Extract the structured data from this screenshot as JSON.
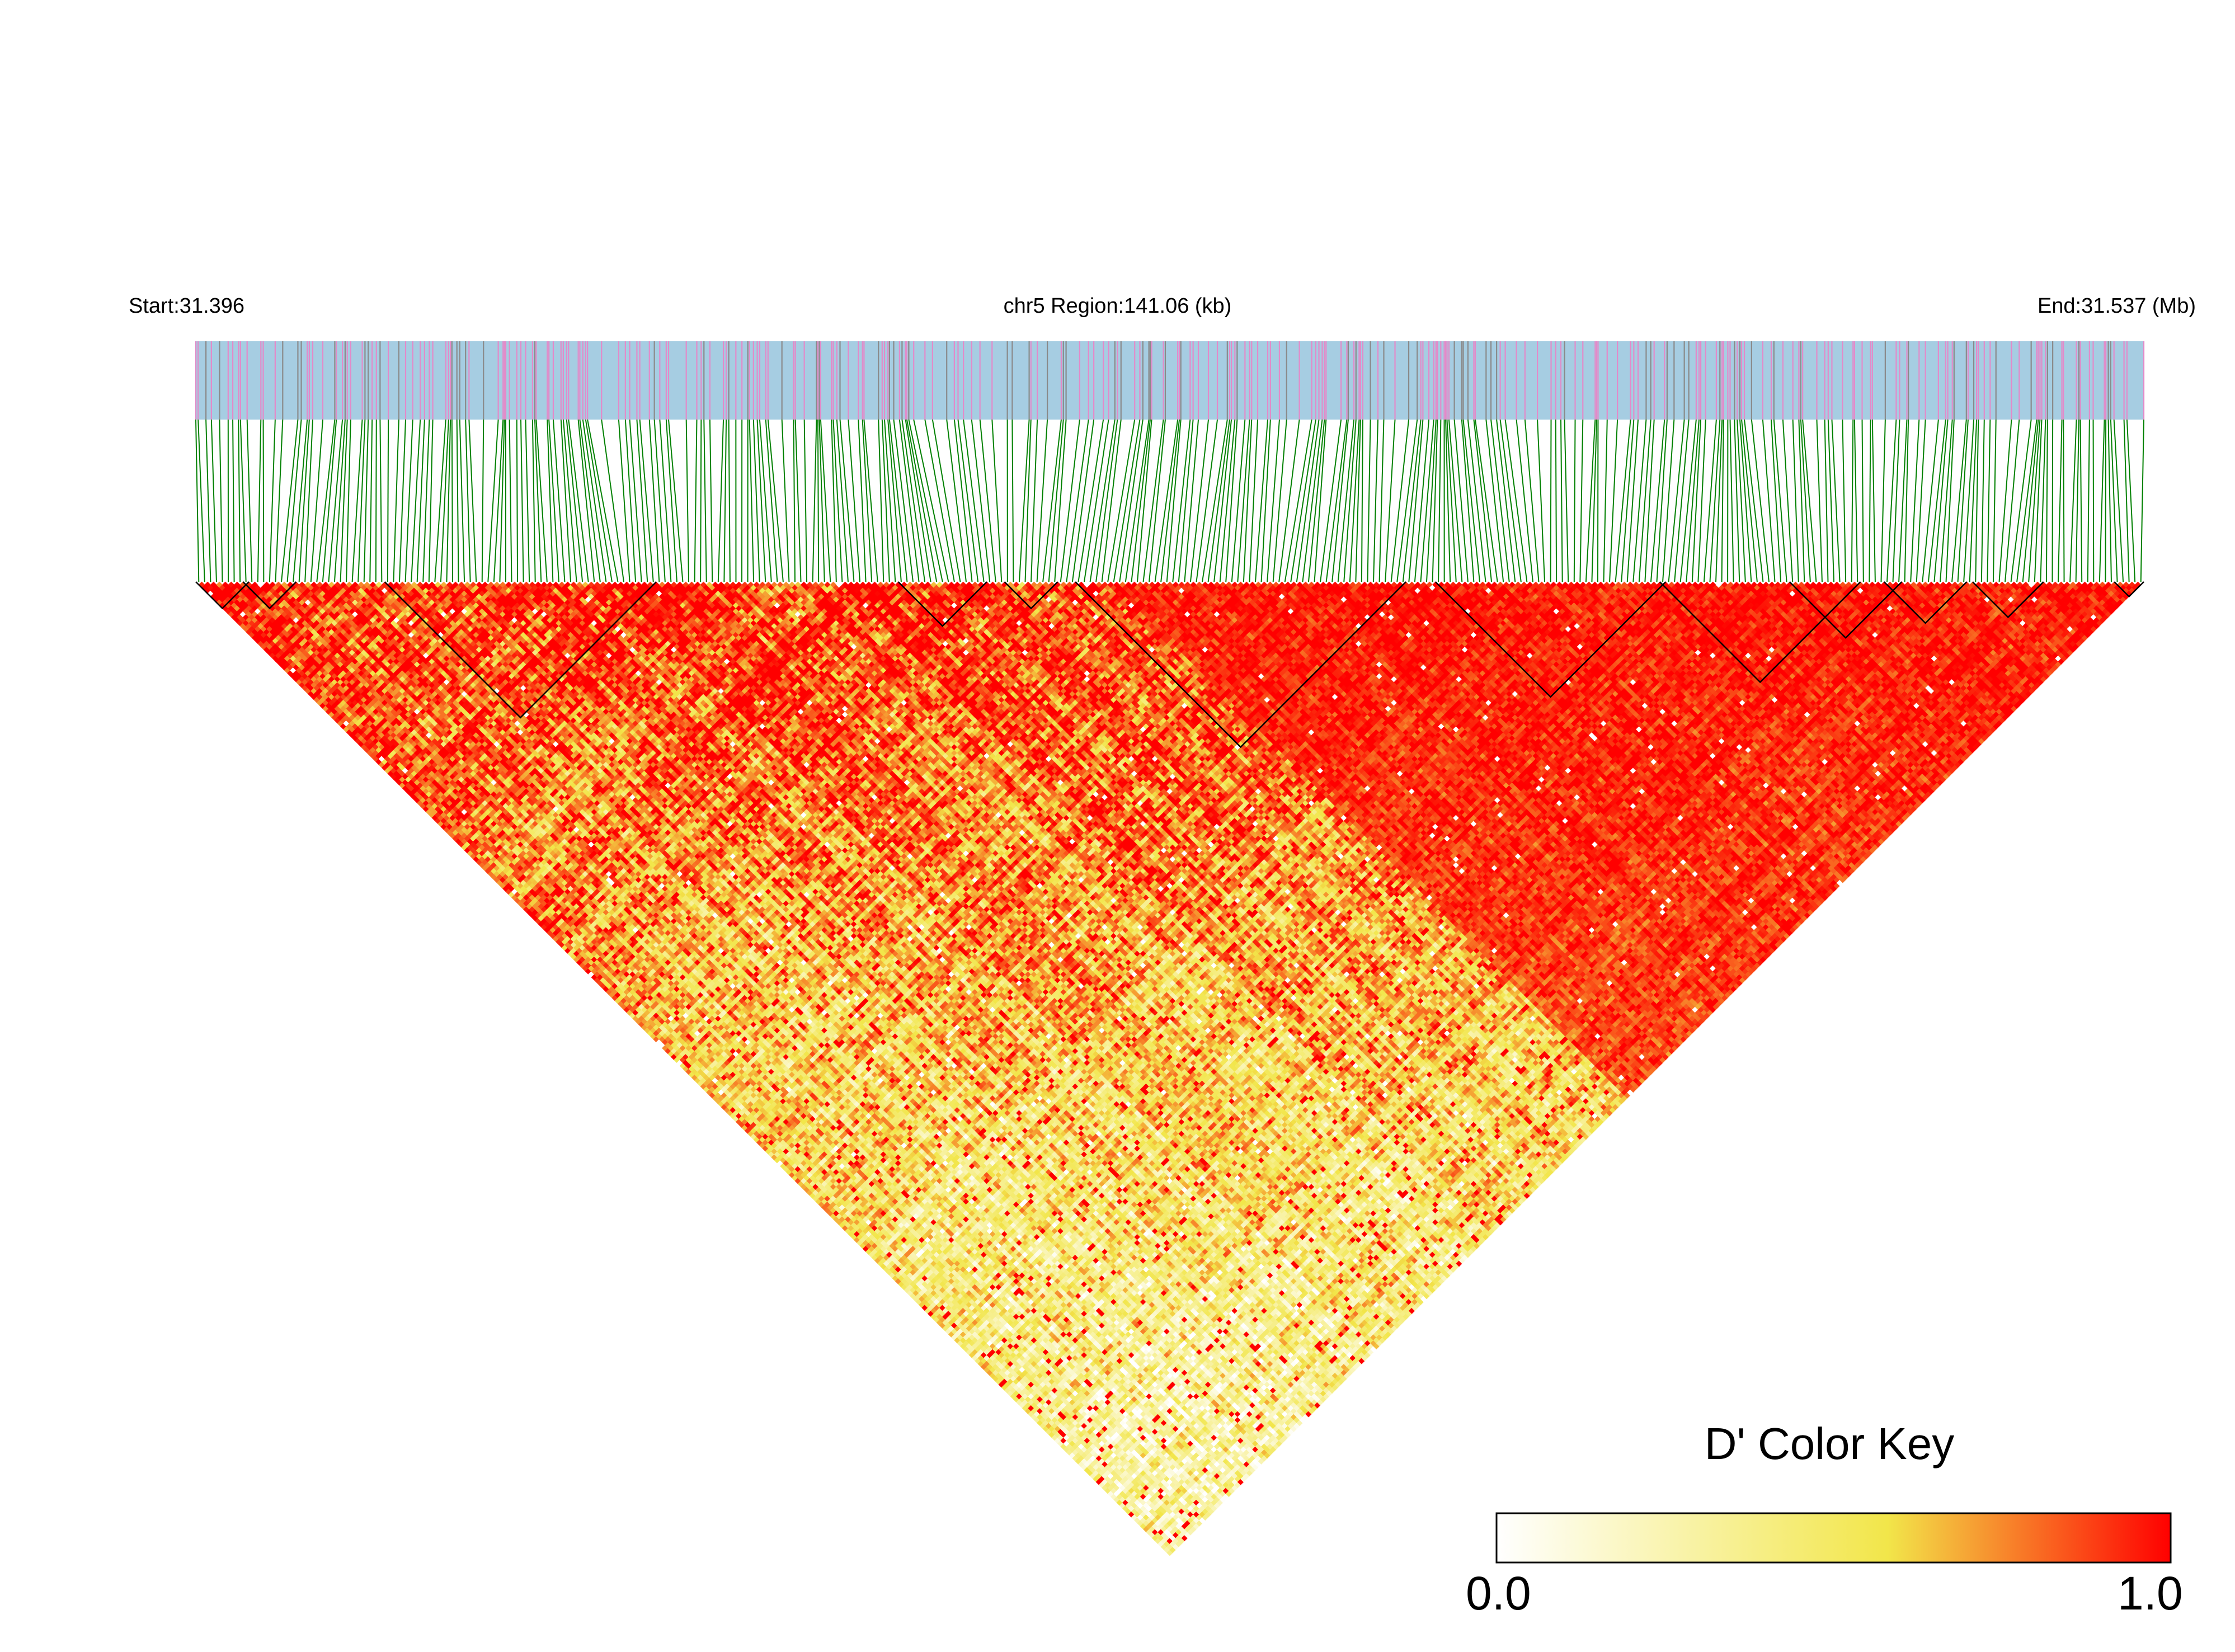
{
  "header": {
    "start": "Start:31.396",
    "region": "chr5 Region:141.06 (kb)",
    "end": "End:31.537 (Mb)"
  },
  "color_key": {
    "title": "D' Color Key",
    "min_label": "0.0",
    "max_label": "1.0",
    "colors": [
      "#ffffff",
      "#f2e64a",
      "#ff0000"
    ]
  },
  "colors": {
    "track_background": "#a6cde2",
    "snp_mark_pink": "#e38ac9",
    "snp_mark_gray": "#8a8a8a",
    "connector_lines": "#008000",
    "block_outline": "#000000"
  },
  "chart_data": {
    "type": "heatmap",
    "description_kind": "LD triangle heatmap of pairwise D'",
    "chromosome": "chr5",
    "start_mb": 31.396,
    "end_mb": 31.537,
    "region_kb": 141.06,
    "value_range": [
      0.0,
      1.0
    ],
    "snp_count_estimate": 330,
    "high_ld_region_snp_indices": [
      155,
      330
    ],
    "haplotype_block_snp_ranges": [
      [
        1,
        9
      ],
      [
        9,
        17
      ],
      [
        33,
        78
      ],
      [
        120,
        134
      ],
      [
        138,
        146
      ],
      [
        150,
        205
      ],
      [
        211,
        249
      ],
      [
        249,
        282
      ],
      [
        271,
        289
      ],
      [
        287,
        300
      ],
      [
        302,
        313
      ],
      [
        326,
        330
      ]
    ]
  }
}
